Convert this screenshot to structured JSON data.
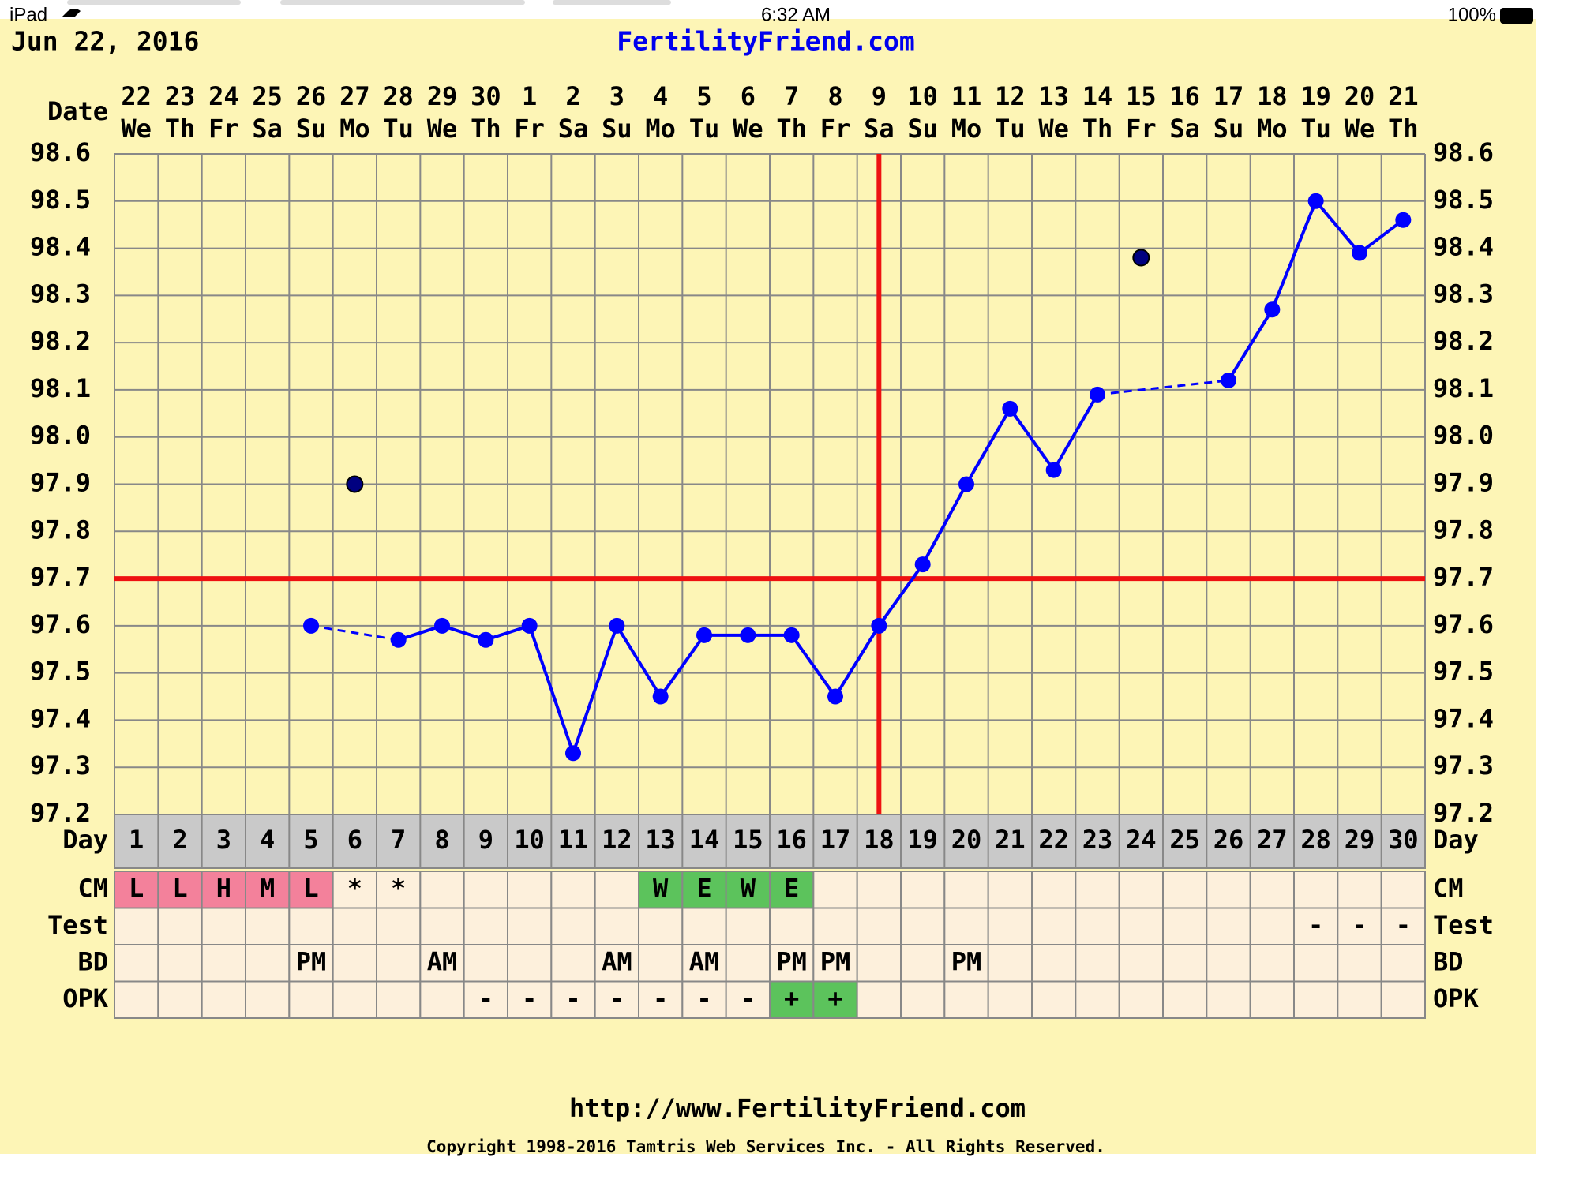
{
  "status_bar": {
    "device": "iPad",
    "time": "6:32 AM",
    "battery": "100%"
  },
  "header": {
    "date": "Jun 22, 2016",
    "site": "FertilityFriend.com"
  },
  "footer": {
    "url": "http://www.FertilityFriend.com",
    "copyright": "Copyright 1998-2016 Tamtris Web Services Inc. - All Rights Reserved."
  },
  "chart_data": {
    "type": "line",
    "date_label": "Date",
    "dates": [
      "22",
      "23",
      "24",
      "25",
      "26",
      "27",
      "28",
      "29",
      "30",
      "1",
      "2",
      "3",
      "4",
      "5",
      "6",
      "7",
      "8",
      "9",
      "10",
      "11",
      "12",
      "13",
      "14",
      "15",
      "16",
      "17",
      "18",
      "19",
      "20",
      "21"
    ],
    "weekdays": [
      "We",
      "Th",
      "Fr",
      "Sa",
      "Su",
      "Mo",
      "Tu",
      "We",
      "Th",
      "Fr",
      "Sa",
      "Su",
      "Mo",
      "Tu",
      "We",
      "Th",
      "Fr",
      "Sa",
      "Su",
      "Mo",
      "Tu",
      "We",
      "Th",
      "Fr",
      "Sa",
      "Su",
      "Mo",
      "Tu",
      "We",
      "Th"
    ],
    "day_label": "Day",
    "days": [
      1,
      2,
      3,
      4,
      5,
      6,
      7,
      8,
      9,
      10,
      11,
      12,
      13,
      14,
      15,
      16,
      17,
      18,
      19,
      20,
      21,
      22,
      23,
      24,
      25,
      26,
      27,
      28,
      29,
      30
    ],
    "series": [
      {
        "color": "#0000ff",
        "values": [
          null,
          null,
          null,
          null,
          97.6,
          null,
          97.57,
          97.6,
          97.57,
          97.6,
          97.33,
          97.6,
          97.45,
          97.58,
          97.58,
          97.58,
          97.45,
          97.6,
          97.73,
          97.9,
          98.06,
          97.93,
          98.09,
          null,
          null,
          98.12,
          98.27,
          98.5,
          98.39,
          98.46
        ]
      },
      {
        "color": "#000080",
        "values": [
          null,
          null,
          null,
          null,
          null,
          97.9,
          null,
          null,
          null,
          null,
          null,
          null,
          null,
          null,
          null,
          null,
          null,
          null,
          null,
          null,
          null,
          null,
          null,
          98.38,
          null,
          null,
          null,
          null,
          null,
          null
        ]
      }
    ],
    "ylim": [
      97.2,
      98.6
    ],
    "yticks": [
      97.2,
      97.3,
      97.4,
      97.5,
      97.6,
      97.7,
      97.8,
      97.9,
      {
        "value": 98,
        "label": "98.0"
      },
      98.1,
      98.2,
      98.3,
      98.4,
      98.5,
      98.6
    ],
    "grid": true,
    "coverline": 97.7,
    "coverline_color": "#ee1111",
    "ovulation_day": 18,
    "rows": [
      {
        "label": "CM",
        "values": [
          "L",
          "L",
          "H",
          "M",
          "L",
          "*",
          "*",
          null,
          null,
          null,
          null,
          null,
          "W",
          "E",
          "W",
          "E",
          null,
          null,
          null,
          null,
          null,
          null,
          null,
          null,
          null,
          null,
          null,
          null,
          null,
          null
        ],
        "colors": {
          "L": "#f3819b",
          "H": "#f3819b",
          "M": "#f3819b",
          "W": "#5cc35c",
          "E": "#5cc35c"
        }
      },
      {
        "label": "Test",
        "values": [
          null,
          null,
          null,
          null,
          null,
          null,
          null,
          null,
          null,
          null,
          null,
          null,
          null,
          null,
          null,
          null,
          null,
          null,
          null,
          null,
          null,
          null,
          null,
          null,
          null,
          null,
          null,
          "-",
          "-",
          "-"
        ],
        "colors": {}
      },
      {
        "label": "BD",
        "values": [
          null,
          null,
          null,
          null,
          "PM",
          null,
          null,
          "AM",
          null,
          null,
          null,
          "AM",
          null,
          "AM",
          null,
          "PM",
          "PM",
          null,
          null,
          "PM",
          null,
          null,
          null,
          null,
          null,
          null,
          null,
          null,
          null,
          null
        ],
        "colors": {}
      },
      {
        "label": "OPK",
        "values": [
          null,
          null,
          null,
          null,
          null,
          null,
          null,
          null,
          "-",
          "-",
          "-",
          "-",
          "-",
          "-",
          "-",
          "+",
          "+",
          null,
          null,
          null,
          null,
          null,
          null,
          null,
          null,
          null,
          null,
          null,
          null,
          null
        ],
        "colors": {
          "+": "#5cc35c"
        }
      }
    ]
  }
}
